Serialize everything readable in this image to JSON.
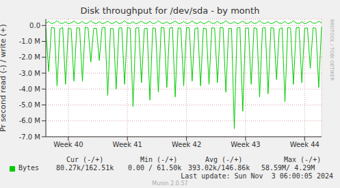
{
  "chart_data": {
    "type": "line",
    "title": "Disk throughput for /dev/sda - by month",
    "y_label": "Pr second read (-) / write (+)",
    "categories": [
      null,
      null,
      null,
      null,
      null,
      null,
      null,
      null,
      "Week 40",
      null,
      null,
      null,
      null,
      null,
      null,
      null,
      null,
      null,
      null,
      null,
      null,
      null,
      null,
      null,
      null,
      null,
      null,
      null,
      null,
      "Week 41",
      null,
      null,
      null,
      null,
      null,
      null,
      null,
      null,
      null,
      null,
      null,
      null,
      null,
      null,
      null,
      null,
      null,
      null,
      null,
      null,
      "Week 42",
      null,
      null,
      null,
      null,
      null,
      null,
      null,
      null,
      null,
      null,
      null,
      null,
      null,
      null,
      null,
      null,
      null,
      null,
      null,
      null,
      "Week 43",
      null,
      null,
      null,
      null,
      null,
      null,
      null,
      null,
      null,
      null,
      null,
      null,
      null,
      null,
      null,
      null,
      null,
      null,
      null,
      null,
      "Week 44",
      null,
      null,
      null,
      null,
      null,
      null
    ],
    "series": [
      {
        "name": "Bytes",
        "color": "#00cc00",
        "read": [
          -180000,
          -2900000,
          -120000,
          -150000,
          -3800000,
          -200000,
          -130000,
          -3700000,
          -160000,
          -210000,
          -3500000,
          -140000,
          -160000,
          -3500000,
          -110000,
          -140000,
          -2300000,
          -190000,
          -170000,
          -2200000,
          -130000,
          -120000,
          -4400000,
          -180000,
          -200000,
          -4000000,
          -150000,
          -150000,
          -3700000,
          -120000,
          -180000,
          -5100000,
          -160000,
          -130000,
          -3600000,
          -210000,
          -160000,
          -4700000,
          -140000,
          -190000,
          -4200000,
          -120000,
          -140000,
          -3900000,
          -170000,
          -120000,
          -4500000,
          -150000,
          -170000,
          -3800000,
          -130000,
          -150000,
          -3500000,
          -200000,
          -130000,
          -3800000,
          -160000,
          -200000,
          -3700000,
          -140000,
          -160000,
          -3600000,
          -120000,
          -140000,
          -4200000,
          -180000,
          -180000,
          -6500000,
          -150000,
          -120000,
          -5400000,
          -170000,
          -150000,
          -3700000,
          -130000,
          -190000,
          -4500000,
          -160000,
          -130000,
          -4300000,
          -140000,
          -160000,
          -3400000,
          -220000,
          -140000,
          -4800000,
          -120000,
          -170000,
          -3700000,
          -150000,
          -120000,
          -3600000,
          -180000,
          -150000,
          -2700000,
          -130000,
          -180000,
          -3900000,
          -80270
        ],
        "write": [
          140000,
          260000,
          120000,
          160000,
          300000,
          150000,
          130000,
          240000,
          110000,
          170000,
          280000,
          140000,
          140000,
          260000,
          120000,
          160000,
          300000,
          150000,
          130000,
          240000,
          110000,
          170000,
          280000,
          140000,
          140000,
          260000,
          120000,
          160000,
          300000,
          150000,
          130000,
          240000,
          110000,
          170000,
          280000,
          140000,
          140000,
          260000,
          120000,
          160000,
          300000,
          150000,
          130000,
          240000,
          110000,
          170000,
          280000,
          140000,
          140000,
          260000,
          120000,
          160000,
          300000,
          150000,
          130000,
          240000,
          110000,
          170000,
          280000,
          140000,
          140000,
          260000,
          120000,
          160000,
          300000,
          150000,
          130000,
          240000,
          110000,
          170000,
          280000,
          140000,
          140000,
          260000,
          120000,
          160000,
          300000,
          150000,
          130000,
          240000,
          110000,
          170000,
          280000,
          140000,
          140000,
          260000,
          120000,
          160000,
          300000,
          150000,
          130000,
          240000,
          110000,
          170000,
          280000,
          140000,
          150000,
          270000,
          162510
        ]
      }
    ],
    "ylim": [
      -7000000,
      400000
    ],
    "yticks": [
      {
        "value": -7000000,
        "label": "-7.0 M"
      },
      {
        "value": -6000000,
        "label": "-6.0 M"
      },
      {
        "value": -5000000,
        "label": "-5.0 M"
      },
      {
        "value": -4000000,
        "label": "-4.0 M"
      },
      {
        "value": -3000000,
        "label": "-3.0 M"
      },
      {
        "value": -2000000,
        "label": "-2.0 M"
      },
      {
        "value": -1000000,
        "label": "-1.0 M"
      },
      {
        "value": 0,
        "label": "0.0"
      }
    ],
    "grid": true,
    "legend_table": {
      "headers": [
        "Cur (-/+)",
        "Min (-/+)",
        "Avg (-/+)",
        "Max (-/+)"
      ],
      "rows": [
        {
          "name": "Bytes",
          "cells": [
            "80.27k/162.51k",
            "0.00 / 61.50k",
            "393.02k/146.86k",
            "58.59M/ 4.29M"
          ]
        }
      ]
    },
    "last_update": "Last update: Sun Nov  3 06:00:05 2024",
    "footer": "Munin 2.0.57",
    "side_text": "RRDTOOL / TOBI OETIKER"
  }
}
